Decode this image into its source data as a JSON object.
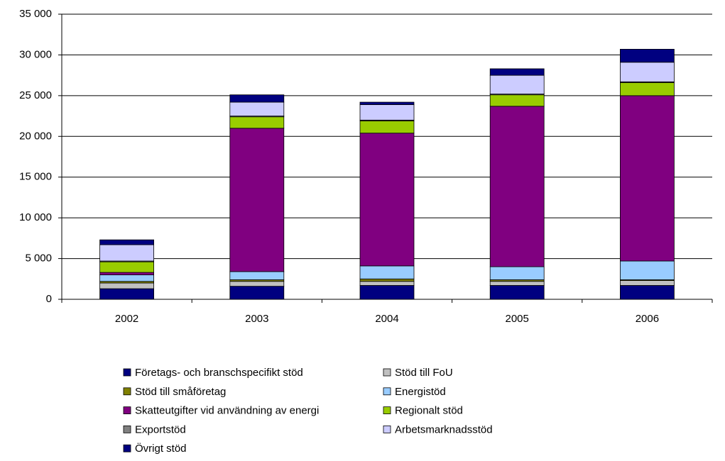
{
  "chart_data": {
    "type": "bar",
    "stacked": true,
    "categories": [
      "2002",
      "2003",
      "2004",
      "2005",
      "2006"
    ],
    "series": [
      {
        "name": "Företags- och branschspecifikt stöd",
        "color": "#000080",
        "values": [
          1300,
          1600,
          1700,
          1700,
          1700
        ]
      },
      {
        "name": "Stöd till FoU",
        "color": "#c0c0c0",
        "values": [
          700,
          600,
          500,
          500,
          600
        ]
      },
      {
        "name": "Stöd till småföretag",
        "color": "#808000",
        "values": [
          200,
          200,
          300,
          200,
          100
        ]
      },
      {
        "name": "Energistöd",
        "color": "#99ccff",
        "values": [
          800,
          1000,
          1600,
          1600,
          2300
        ]
      },
      {
        "name": "Skatteutgifter vid användning av energi",
        "color": "#800080",
        "values": [
          300,
          17600,
          16300,
          19700,
          20300
        ]
      },
      {
        "name": "Regionalt stöd",
        "color": "#99cc00",
        "values": [
          1300,
          1400,
          1500,
          1400,
          1600
        ]
      },
      {
        "name": "Exportstöd",
        "color": "#808080",
        "values": [
          100,
          100,
          100,
          100,
          100
        ]
      },
      {
        "name": "Arbetsmarknadsstöd",
        "color": "#ccccff",
        "values": [
          2000,
          1700,
          1900,
          2300,
          2400
        ]
      },
      {
        "name": "Övrigt stöd",
        "color": "#000080",
        "values": [
          600,
          900,
          300,
          800,
          1600
        ]
      }
    ],
    "ylim": [
      0,
      35000
    ],
    "yticks": [
      0,
      {
        "value": 5000,
        "label": "5 000"
      },
      {
        "value": 10000,
        "label": "10 000"
      },
      {
        "value": 15000,
        "label": "15 000"
      },
      {
        "value": 20000,
        "label": "20 000"
      },
      {
        "value": 25000,
        "label": "25 000"
      },
      {
        "value": 30000,
        "label": "30 000"
      },
      {
        "value": 35000,
        "label": "35 000"
      }
    ],
    "grid": true
  }
}
